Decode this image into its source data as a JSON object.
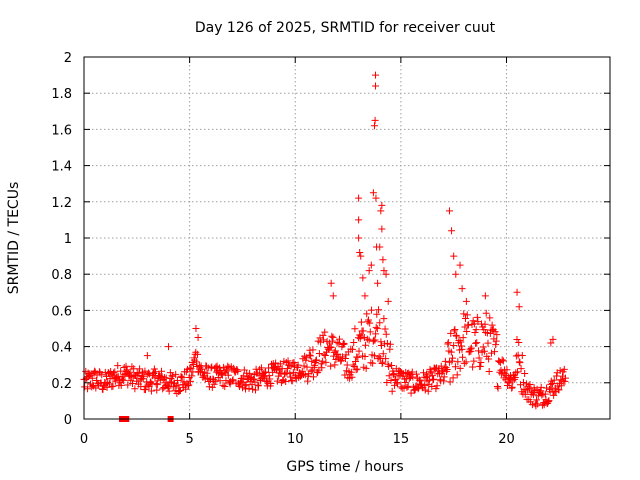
{
  "chart_data": {
    "type": "scatter",
    "title": "Day 126 of 2025, SRMTID for receiver cuut",
    "xlabel": "GPS time / hours",
    "ylabel": "SRMTID / TECUs",
    "xlim": [
      0,
      24.9
    ],
    "ylim": [
      0,
      2
    ],
    "xticks": [
      0,
      5,
      10,
      15,
      20
    ],
    "xtick_labels": [
      "0",
      "5",
      "10",
      "15",
      "20"
    ],
    "yticks": [
      0,
      0.2,
      0.4,
      0.6,
      0.8,
      1,
      1.2,
      1.4,
      1.6,
      1.8,
      2
    ],
    "ytick_labels": [
      "0",
      "0.2",
      "0.4",
      "0.6",
      "0.8",
      "1",
      "1.2",
      "1.4",
      "1.6",
      "1.8",
      "2"
    ],
    "grid": true,
    "marker": "+",
    "series": [
      {
        "name": "SRMTID",
        "color": "#ff0000",
        "baseline": [
          [
            0.0,
            0.2
          ],
          [
            0.5,
            0.22
          ],
          [
            1.0,
            0.2
          ],
          [
            1.5,
            0.24
          ],
          [
            2.0,
            0.25
          ],
          [
            2.5,
            0.22
          ],
          [
            3.0,
            0.21
          ],
          [
            3.5,
            0.22
          ],
          [
            4.0,
            0.2
          ],
          [
            4.5,
            0.2
          ],
          [
            5.0,
            0.22
          ],
          [
            5.3,
            0.35
          ],
          [
            5.6,
            0.25
          ],
          [
            6.0,
            0.23
          ],
          [
            7.0,
            0.24
          ],
          [
            8.0,
            0.21
          ],
          [
            9.0,
            0.25
          ],
          [
            10.0,
            0.27
          ],
          [
            10.5,
            0.3
          ],
          [
            11.0,
            0.34
          ],
          [
            11.5,
            0.4
          ],
          [
            12.0,
            0.36
          ],
          [
            12.5,
            0.3
          ],
          [
            13.0,
            0.38
          ],
          [
            13.5,
            0.45
          ],
          [
            14.0,
            0.5
          ],
          [
            14.3,
            0.35
          ],
          [
            14.6,
            0.25
          ],
          [
            15.0,
            0.22
          ],
          [
            15.5,
            0.2
          ],
          [
            16.0,
            0.2
          ],
          [
            16.5,
            0.22
          ],
          [
            17.0,
            0.24
          ],
          [
            17.5,
            0.35
          ],
          [
            18.0,
            0.45
          ],
          [
            18.5,
            0.4
          ],
          [
            19.0,
            0.45
          ],
          [
            19.5,
            0.35
          ],
          [
            20.0,
            0.25
          ],
          [
            20.3,
            0.2
          ],
          [
            20.5,
            0.35
          ],
          [
            21.0,
            0.15
          ],
          [
            21.5,
            0.12
          ],
          [
            22.0,
            0.15
          ],
          [
            22.5,
            0.22
          ],
          [
            22.8,
            0.22
          ]
        ],
        "spikes": [
          [
            13.0,
            1.22
          ],
          [
            13.0,
            1.1
          ],
          [
            13.0,
            1.0
          ],
          [
            13.05,
            0.92
          ],
          [
            13.1,
            0.9
          ],
          [
            13.2,
            0.78
          ],
          [
            13.3,
            0.68
          ],
          [
            13.5,
            0.82
          ],
          [
            13.6,
            0.85
          ],
          [
            13.7,
            1.25
          ],
          [
            13.75,
            1.62
          ],
          [
            13.78,
            1.65
          ],
          [
            13.8,
            1.84
          ],
          [
            13.8,
            1.9
          ],
          [
            13.82,
            1.22
          ],
          [
            13.85,
            0.95
          ],
          [
            13.9,
            0.75
          ],
          [
            14.0,
            0.95
          ],
          [
            14.05,
            1.15
          ],
          [
            14.1,
            1.05
          ],
          [
            14.1,
            1.18
          ],
          [
            14.15,
            0.88
          ],
          [
            14.2,
            0.82
          ],
          [
            14.3,
            0.8
          ],
          [
            14.4,
            0.65
          ],
          [
            11.7,
            0.75
          ],
          [
            11.8,
            0.68
          ],
          [
            17.3,
            1.15
          ],
          [
            17.4,
            1.04
          ],
          [
            17.5,
            0.9
          ],
          [
            17.6,
            0.8
          ],
          [
            17.8,
            0.85
          ],
          [
            17.9,
            0.72
          ],
          [
            18.1,
            0.65
          ],
          [
            19.0,
            0.68
          ],
          [
            20.5,
            0.7
          ],
          [
            20.6,
            0.62
          ],
          [
            5.3,
            0.5
          ],
          [
            5.4,
            0.45
          ],
          [
            4.0,
            0.4
          ],
          [
            3.0,
            0.35
          ],
          [
            22.2,
            0.44
          ],
          [
            22.1,
            0.42
          ]
        ],
        "low_outliers": [
          [
            1.8,
            0.0
          ],
          [
            2.0,
            0.0
          ],
          [
            4.1,
            0.0
          ]
        ]
      }
    ]
  },
  "colors": {
    "series": "#ff0000",
    "frame": "#000000",
    "grid": "#a0a0a0"
  }
}
